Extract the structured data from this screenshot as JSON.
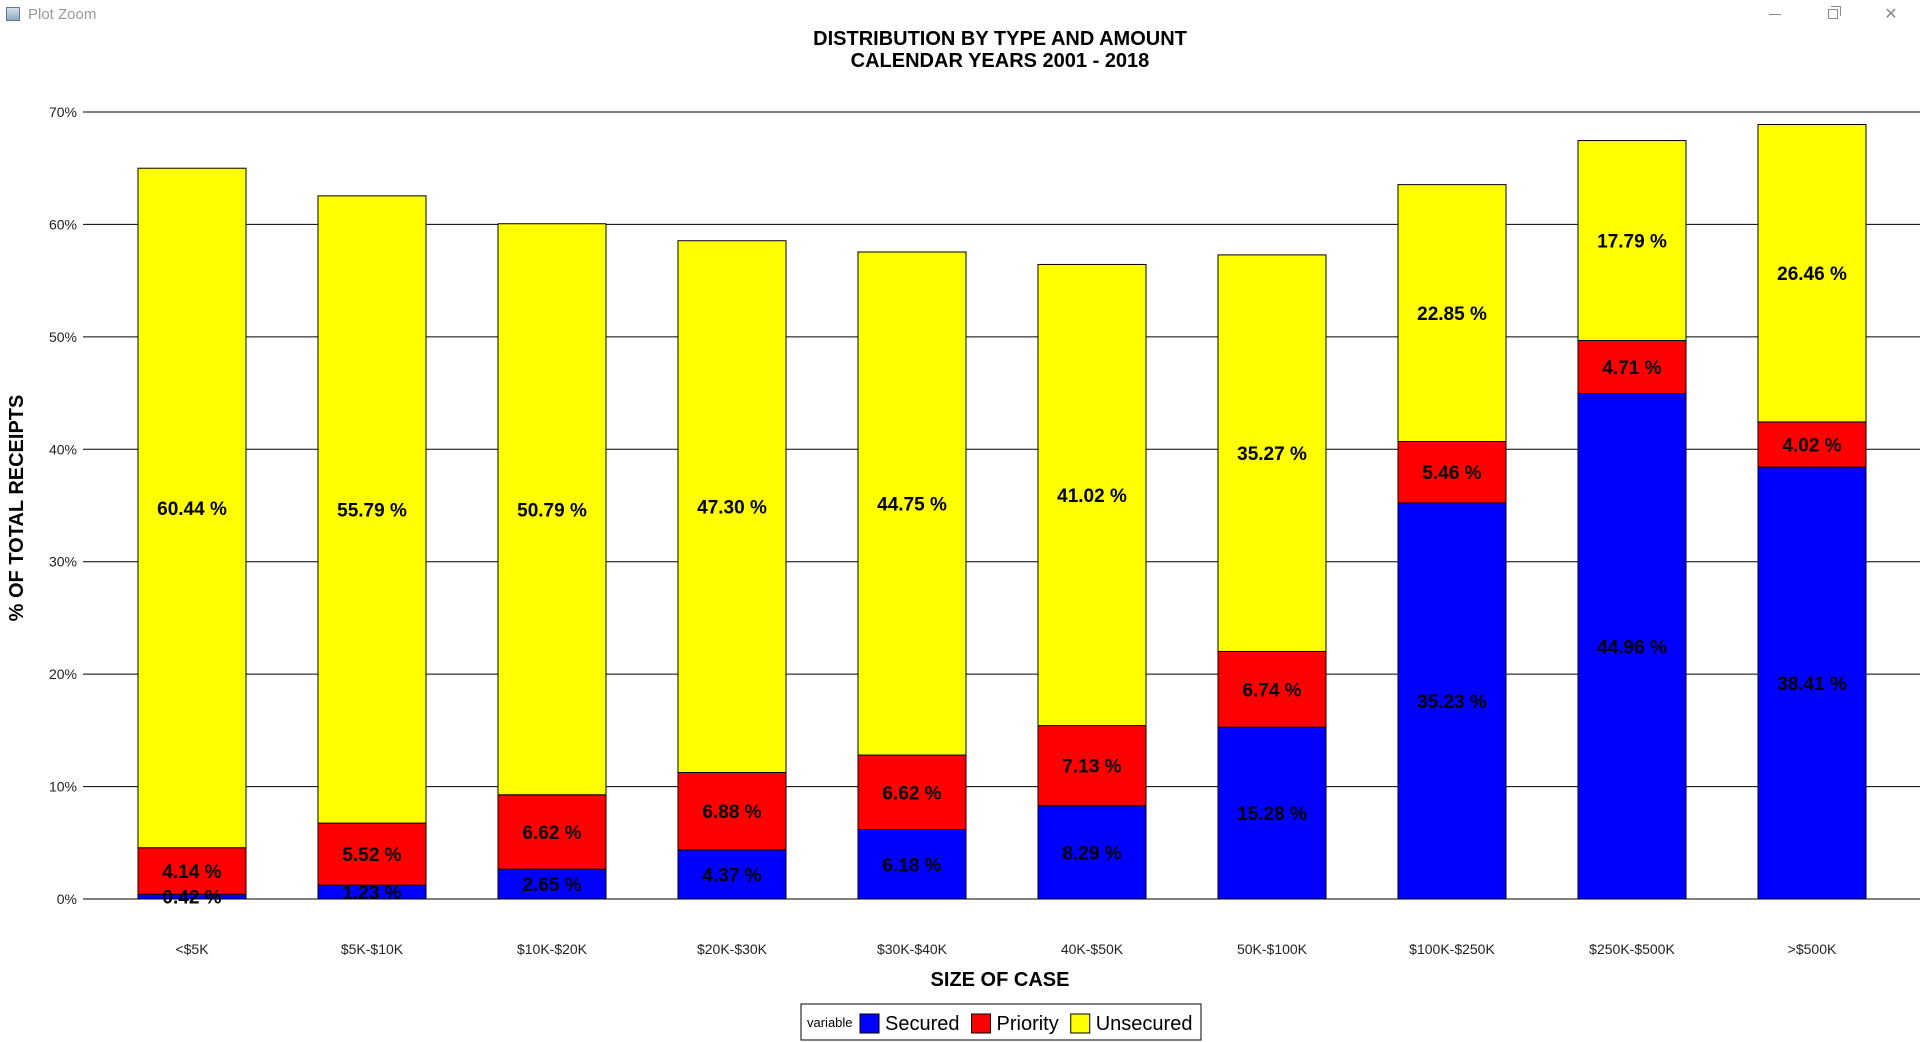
{
  "window": {
    "title": "Plot Zoom",
    "close_label": "✕"
  },
  "chart_data": {
    "type": "bar",
    "stacked": true,
    "title": "DISTRIBUTION BY TYPE AND AMOUNT",
    "subtitle": "CALENDAR YEARS 2001 - 2018",
    "xlabel": "SIZE OF CASE",
    "ylabel": "% OF TOTAL RECEIPTS",
    "ylim": [
      0,
      70
    ],
    "yticks": [
      0,
      10,
      20,
      30,
      40,
      50,
      60,
      70
    ],
    "ytick_labels": [
      "0%",
      "10%",
      "20%",
      "30%",
      "40%",
      "50%",
      "60%",
      "70%"
    ],
    "grid": "horizontal",
    "categories": [
      "<$5K",
      "$5K-$10K",
      "$10K-$20K",
      "$20K-$30K",
      "$30K-$40K",
      "40K-$50K",
      "50K-$100K",
      "$100K-$250K",
      "$250K-$500K",
      ">$500K"
    ],
    "legend": {
      "title": "variable",
      "position": "bottom"
    },
    "series": [
      {
        "name": "Secured",
        "color": "#0000ff",
        "values": [
          0.42,
          1.23,
          2.65,
          4.37,
          6.18,
          8.29,
          15.28,
          35.23,
          44.96,
          38.41
        ],
        "labels": [
          "0.42 %",
          "1.23 %",
          "2.65 %",
          "4.37 %",
          "6.18 %",
          "8.29 %",
          "15.28 %",
          "35.23 %",
          "44.96 %",
          "38.41 %"
        ]
      },
      {
        "name": "Priority",
        "color": "#ff0000",
        "values": [
          4.14,
          5.52,
          6.62,
          6.88,
          6.62,
          7.13,
          6.74,
          5.46,
          4.71,
          4.02
        ],
        "labels": [
          "4.14 %",
          "5.52 %",
          "6.62 %",
          "6.88 %",
          "6.62 %",
          "7.13 %",
          "6.74 %",
          "5.46 %",
          "4.71 %",
          "4.02 %"
        ]
      },
      {
        "name": "Unsecured",
        "color": "#ffff00",
        "values": [
          60.44,
          55.79,
          50.79,
          47.3,
          44.75,
          41.02,
          35.27,
          22.85,
          17.79,
          26.46
        ],
        "labels": [
          "60.44 %",
          "55.79 %",
          "50.79 %",
          "47.30 %",
          "44.75 %",
          "41.02 %",
          "35.27 %",
          "22.85 %",
          "17.79 %",
          "26.46 %"
        ]
      }
    ]
  }
}
